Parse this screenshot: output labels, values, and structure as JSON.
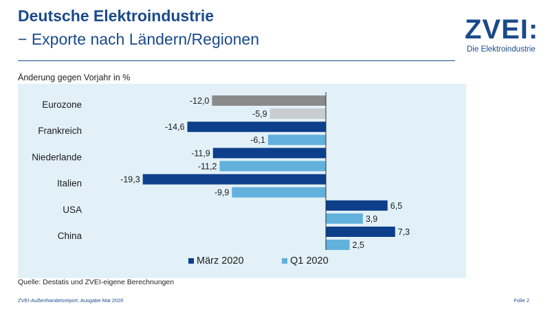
{
  "header": {
    "title": "Deutsche Elektroindustrie",
    "subtitle": "− Exporte nach Ländern/Regionen"
  },
  "logo": {
    "wordmark": "ZVEI:",
    "tagline": "Die Elektroindustrie"
  },
  "footer": {
    "source": "Quelle: Destatis und ZVEI-eigene Berechnungen",
    "report": "ZVEI-Außenhandelsreport, Ausgabe Mai 2020",
    "slide": "Folie 2"
  },
  "chart_data": {
    "type": "bar",
    "orientation": "horizontal",
    "ylabel": "Änderung gegen Vorjahr in %",
    "categories": [
      "Eurozone",
      "Frankreich",
      "Niederlande",
      "Italien",
      "USA",
      "China"
    ],
    "series": [
      {
        "name": "März 2020",
        "values": [
          -12.0,
          -14.6,
          -11.9,
          -19.3,
          6.5,
          7.3
        ],
        "labels": [
          "-12,0",
          "-14,6",
          "-11,9",
          "-19,3",
          "6,5",
          "7,3"
        ],
        "color": "#0d3f8a",
        "highlight": {
          "index": 0,
          "color": "#8a8a8a"
        }
      },
      {
        "name": "Q1 2020",
        "values": [
          -5.9,
          -6.1,
          -11.2,
          -9.9,
          3.9,
          2.5
        ],
        "labels": [
          "-5,9",
          "-6,1",
          "-11,2",
          "-9,9",
          "3,9",
          "2,5"
        ],
        "color": "#62b1dc",
        "highlight": {
          "index": 0,
          "color": "#c8cdd1"
        }
      }
    ],
    "xlim": [
      -20,
      8
    ],
    "grid": false,
    "legend": "bottom"
  }
}
